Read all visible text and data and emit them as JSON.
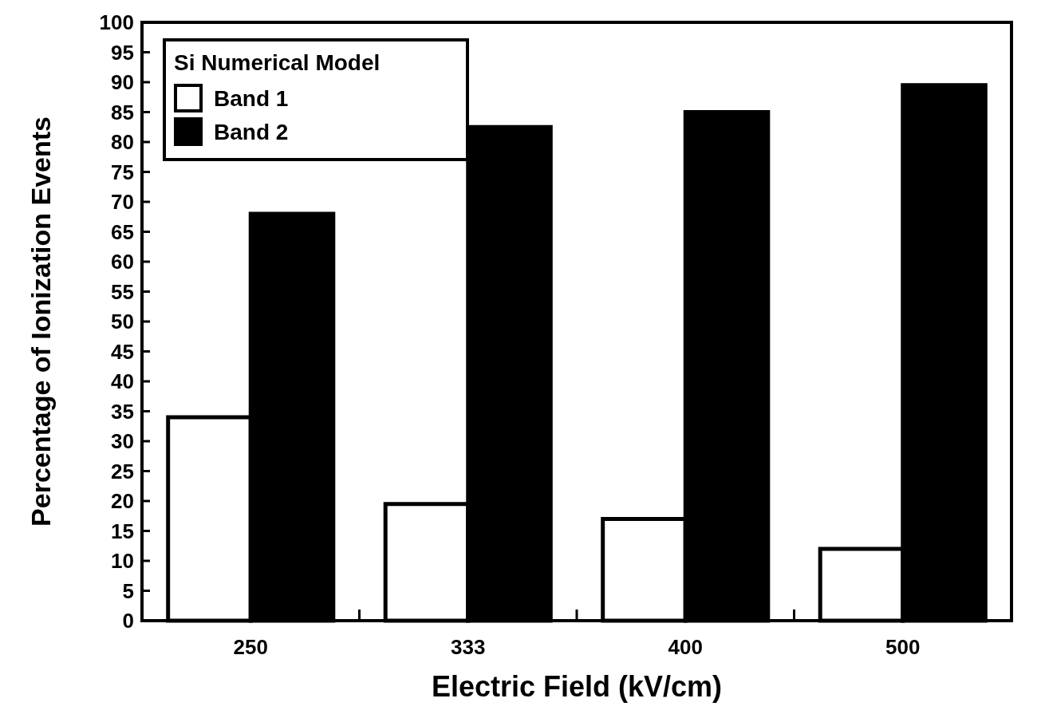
{
  "chart_data": {
    "type": "bar",
    "xlabel": "Electric Field (kV/cm)",
    "ylabel": "Percentage of Ionization Events",
    "legend_title": "Si Numerical Model",
    "categories": [
      "250",
      "333",
      "400",
      "500"
    ],
    "series": [
      {
        "name": "Band 1",
        "color": "#ffffff",
        "values": [
          34,
          19.5,
          17,
          12
        ]
      },
      {
        "name": "Band 2",
        "color": "#000000",
        "values": [
          68,
          82.5,
          85,
          89.5
        ]
      }
    ],
    "ylim": [
      0,
      100
    ],
    "yticks": [
      0,
      5,
      10,
      15,
      20,
      25,
      30,
      35,
      40,
      45,
      50,
      55,
      60,
      65,
      70,
      75,
      80,
      85,
      90,
      95,
      100
    ],
    "grid": false,
    "legend": "top left"
  }
}
